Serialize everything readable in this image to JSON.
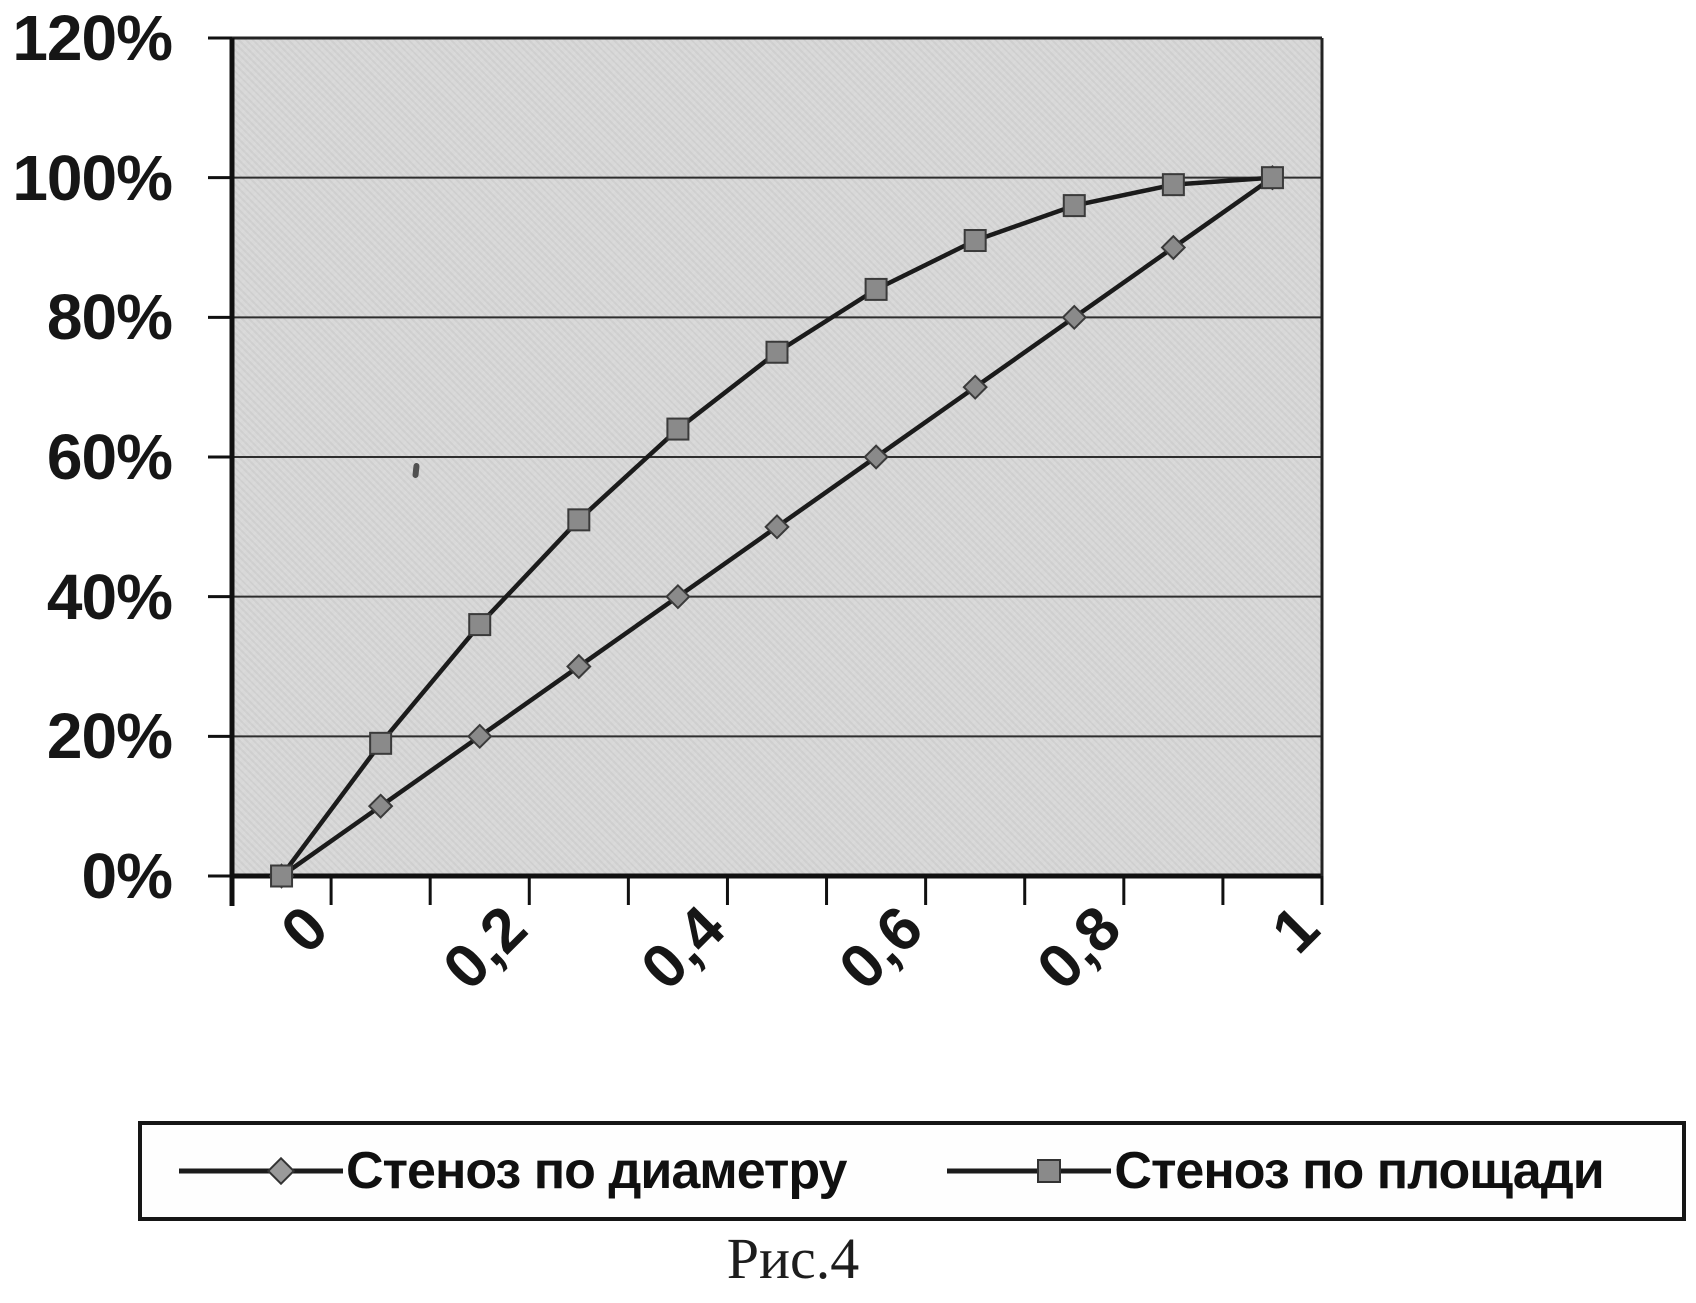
{
  "figure": {
    "caption": "Рис.4"
  },
  "chart_data": {
    "type": "line",
    "title": "",
    "xlabel": "",
    "ylabel": "",
    "categories": [
      "0",
      "0,1",
      "0,2",
      "0,3",
      "0,4",
      "0,5",
      "0,6",
      "0,7",
      "0,8",
      "0,9",
      "1"
    ],
    "x_tick_labels": [
      "0",
      "0,2",
      "0,4",
      "0,6",
      "0,8",
      "1"
    ],
    "y_tick_labels": [
      "0%",
      "20%",
      "40%",
      "60%",
      "80%",
      "100%",
      "120%"
    ],
    "ylim": [
      0,
      120
    ],
    "y_step": 20,
    "grid": "horizontal",
    "legend_position": "bottom",
    "series": [
      {
        "name": "Стеноз по диаметру",
        "marker": "diamond",
        "values": [
          0,
          10,
          20,
          30,
          40,
          50,
          60,
          70,
          80,
          90,
          100
        ]
      },
      {
        "name": "Стеноз по площади",
        "marker": "square",
        "values": [
          0,
          19,
          36,
          51,
          64,
          75,
          84,
          91,
          96,
          99,
          100
        ]
      }
    ],
    "colors": {
      "line": "#1b1b1b",
      "marker_fill": "#8a8a8a",
      "marker_stroke": "#3a3a3a",
      "grid": "#2e2e2e",
      "plot_background": "#d8d8d8",
      "text": "#161616"
    }
  }
}
